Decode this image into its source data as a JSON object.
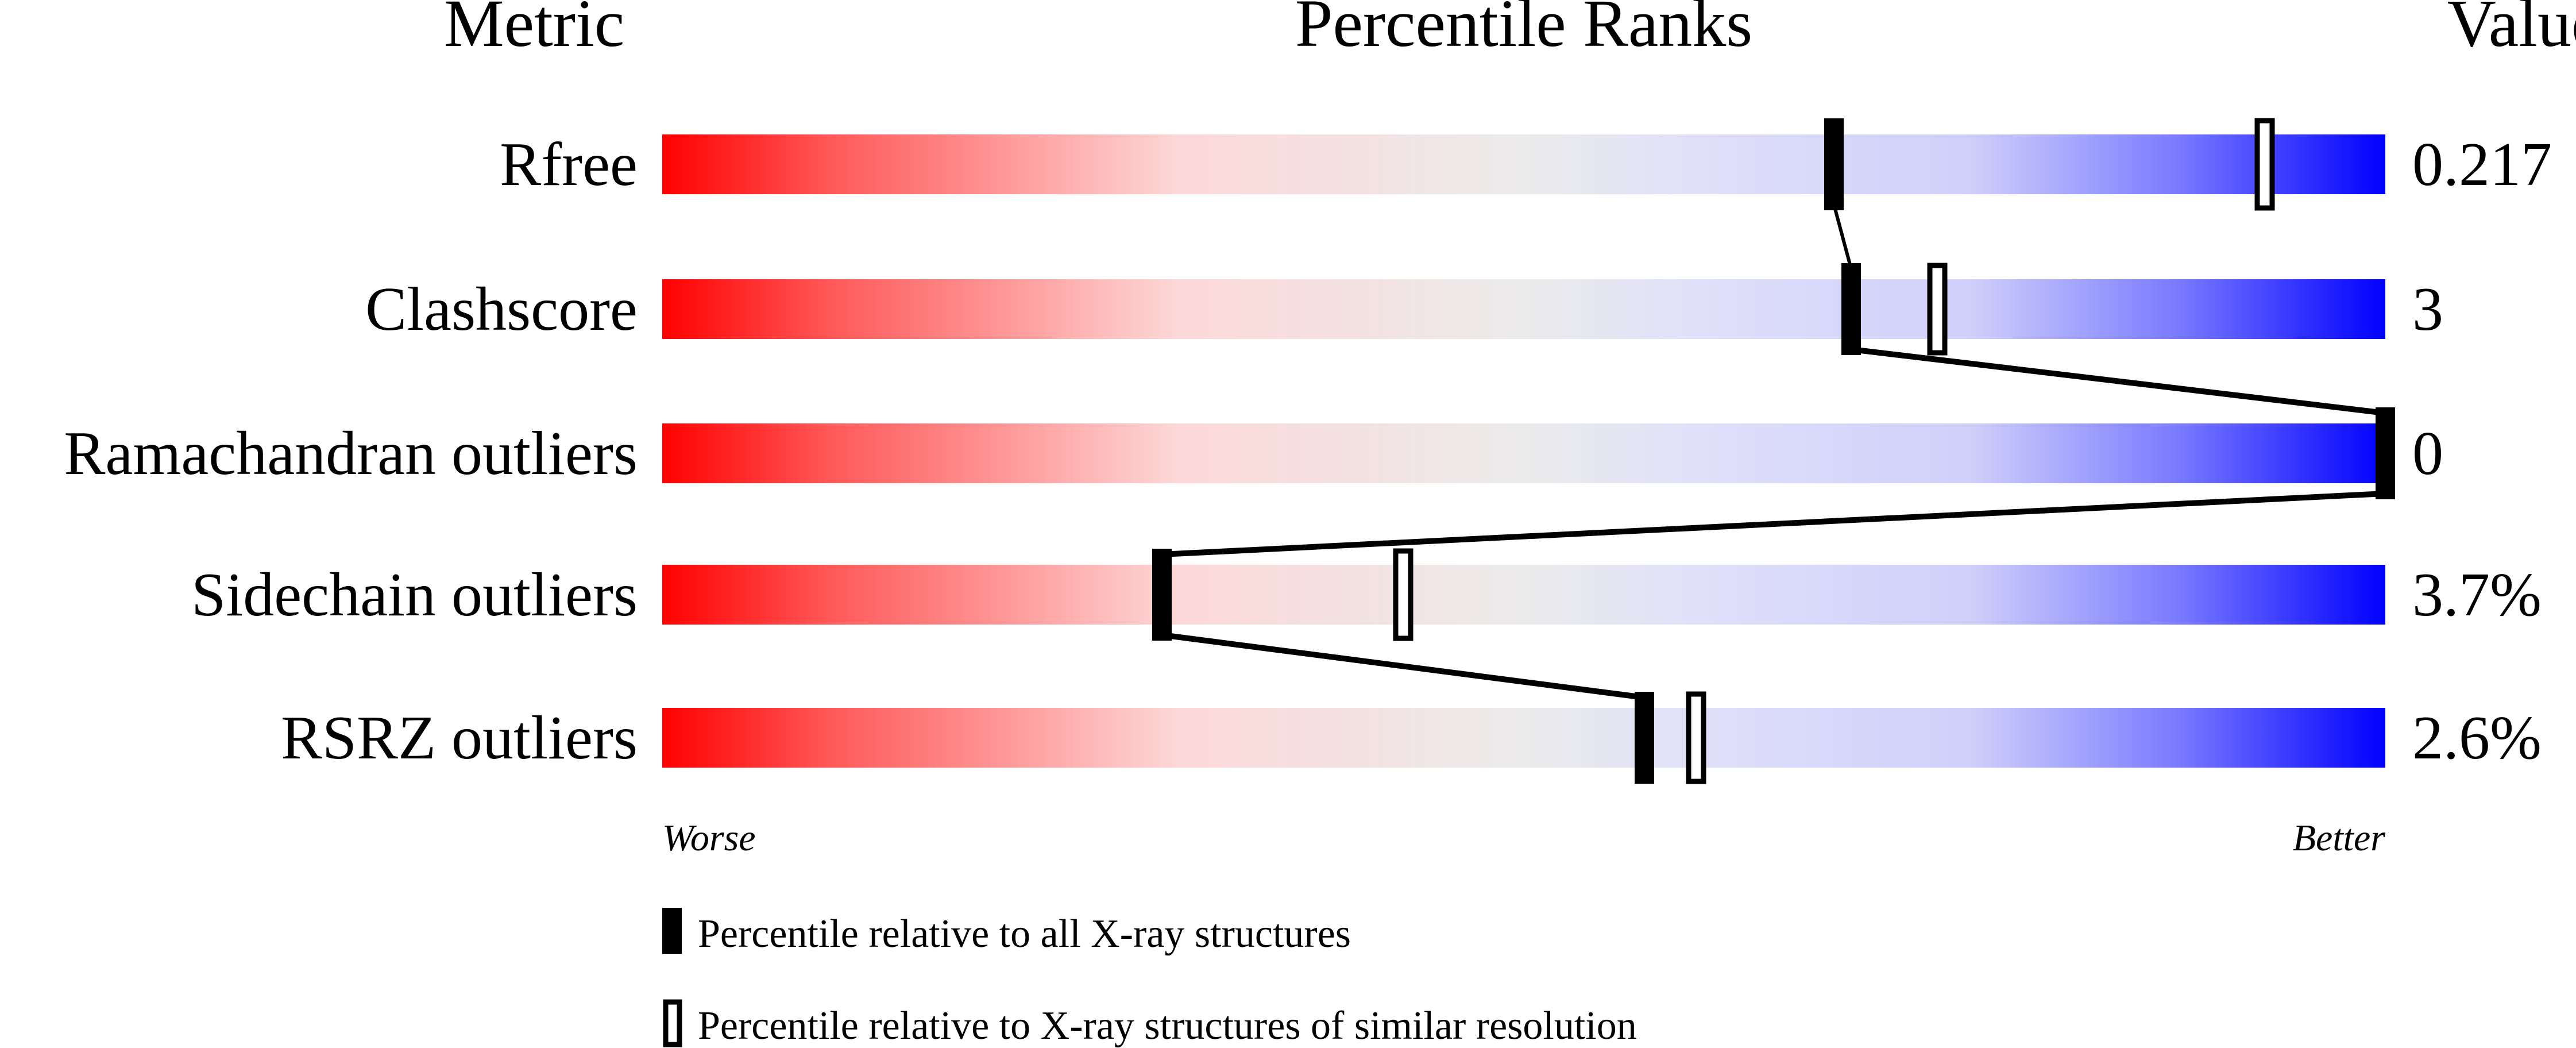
{
  "chart_data": {
    "type": "bar",
    "headers": {
      "metric": "Metric",
      "percentile": "Percentile Ranks",
      "value": "Value"
    },
    "xlim": [
      0,
      100
    ],
    "metrics": [
      {
        "name": "Rfree",
        "value": "0.217",
        "percentile_all": 68,
        "percentile_similar": 93
      },
      {
        "name": "Clashscore",
        "value": "3",
        "percentile_all": 69,
        "percentile_similar": 74
      },
      {
        "name": "Ramachandran outliers",
        "value": "0",
        "percentile_all": 100,
        "percentile_similar": 100
      },
      {
        "name": "Sidechain outliers",
        "value": "3.7%",
        "percentile_all": 29,
        "percentile_similar": 43
      },
      {
        "name": "RSRZ outliers",
        "value": "2.6%",
        "percentile_all": 57,
        "percentile_similar": 60
      }
    ],
    "scale_labels": {
      "worse": "Worse",
      "better": "Better"
    },
    "legend": {
      "all": "Percentile relative to all X-ray structures",
      "similar": "Percentile relative to X-ray structures of similar resolution"
    },
    "colors": {
      "worse": "#ff0000",
      "middle": "#ebebeb",
      "better": "#0000ff",
      "marker": "#000000"
    }
  }
}
